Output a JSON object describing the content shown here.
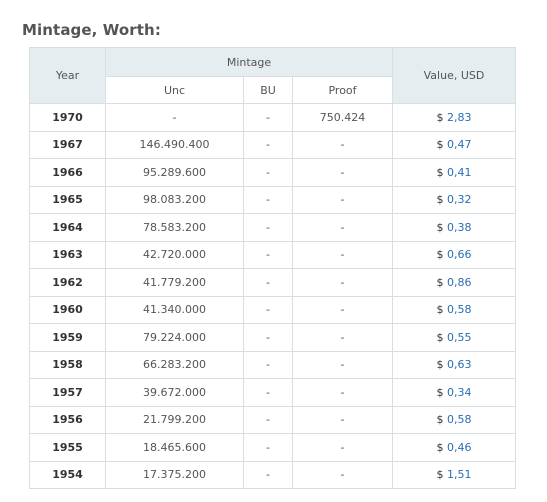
{
  "heading": "Mintage, Worth:",
  "table": {
    "col_year": "Year",
    "col_mintage": "Mintage",
    "col_unc": "Unc",
    "col_bu": "BU",
    "col_proof": "Proof",
    "col_value": "Value, USD",
    "currency": "$",
    "rows": [
      {
        "year": "1970",
        "unc": "-",
        "bu": "-",
        "proof": "750.424",
        "value": "2,83"
      },
      {
        "year": "1967",
        "unc": "146.490.400",
        "bu": "-",
        "proof": "-",
        "value": "0,47"
      },
      {
        "year": "1966",
        "unc": "95.289.600",
        "bu": "-",
        "proof": "-",
        "value": "0,41"
      },
      {
        "year": "1965",
        "unc": "98.083.200",
        "bu": "-",
        "proof": "-",
        "value": "0,32"
      },
      {
        "year": "1964",
        "unc": "78.583.200",
        "bu": "-",
        "proof": "-",
        "value": "0,38"
      },
      {
        "year": "1963",
        "unc": "42.720.000",
        "bu": "-",
        "proof": "-",
        "value": "0,66"
      },
      {
        "year": "1962",
        "unc": "41.779.200",
        "bu": "-",
        "proof": "-",
        "value": "0,86"
      },
      {
        "year": "1960",
        "unc": "41.340.000",
        "bu": "-",
        "proof": "-",
        "value": "0,58"
      },
      {
        "year": "1959",
        "unc": "79.224.000",
        "bu": "-",
        "proof": "-",
        "value": "0,55"
      },
      {
        "year": "1958",
        "unc": "66.283.200",
        "bu": "-",
        "proof": "-",
        "value": "0,63"
      },
      {
        "year": "1957",
        "unc": "39.672.000",
        "bu": "-",
        "proof": "-",
        "value": "0,34"
      },
      {
        "year": "1956",
        "unc": "21.799.200",
        "bu": "-",
        "proof": "-",
        "value": "0,58"
      },
      {
        "year": "1955",
        "unc": "18.465.600",
        "bu": "-",
        "proof": "-",
        "value": "0,46"
      },
      {
        "year": "1954",
        "unc": "17.375.200",
        "bu": "-",
        "proof": "-",
        "value": "1,51"
      }
    ]
  },
  "colors": {
    "header_bg": "#e6edf0",
    "border": "#d7dfe2",
    "link": "#2a6db5",
    "heading": "#555555"
  }
}
